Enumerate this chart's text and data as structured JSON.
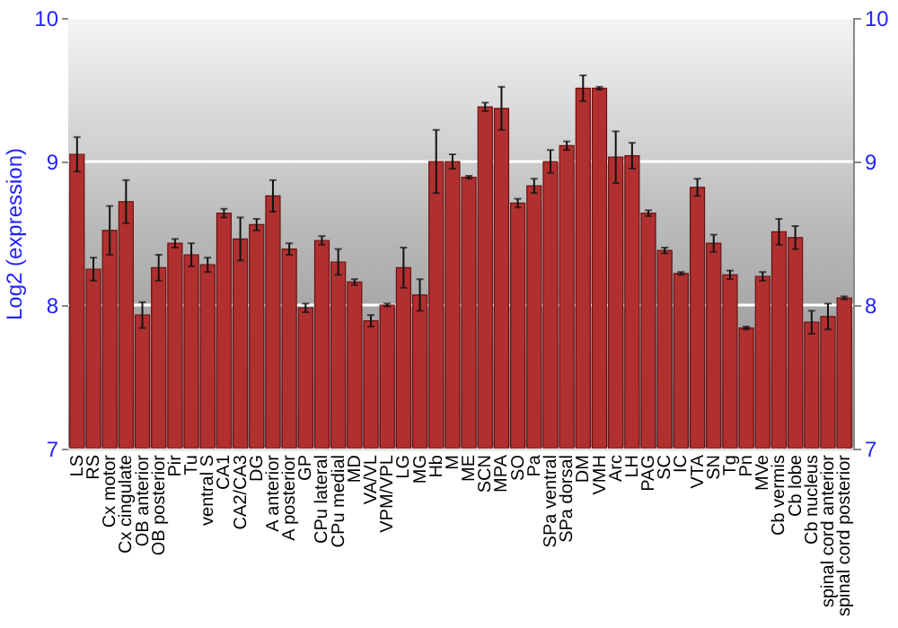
{
  "chart_data": {
    "type": "bar",
    "ylabel": "Log2 (expression)",
    "categories": [
      "LS",
      "RS",
      "Cx motor",
      "Cx cingulate",
      "OB anterior",
      "OB posterior",
      "Pir",
      "Tu",
      "ventral S",
      "CA1",
      "CA2/CA3",
      "DG",
      "A anterior",
      "A posterior",
      "GP",
      "CPu lateral",
      "CPu medial",
      "MD",
      "VA/VL",
      "VPM/VPL",
      "LG",
      "MG",
      "Hb",
      "M",
      "ME",
      "SCN",
      "MPA",
      "SO",
      "Pa",
      "SPa ventral",
      "SPa dorsal",
      "DM",
      "VMH",
      "Arc",
      "LH",
      "PAG",
      "SC",
      "IC",
      "VTA",
      "SN",
      "Tg",
      "Pn",
      "MVe",
      "Cb vermis",
      "Cb lobe",
      "Cb nucleus",
      "spinal cord anterior",
      "spinal cord posterior"
    ],
    "series": [
      {
        "color": "#b03030",
        "values": [
          9.05,
          8.25,
          8.52,
          8.72,
          7.93,
          8.26,
          8.43,
          8.35,
          8.28,
          8.64,
          8.46,
          8.56,
          8.76,
          8.39,
          7.98,
          8.45,
          8.3,
          8.16,
          7.89,
          8.0,
          8.26,
          8.07,
          9.0,
          9.0,
          8.89,
          9.38,
          9.37,
          8.71,
          8.83,
          9.0,
          9.11,
          9.51,
          9.51,
          9.03,
          9.04,
          8.64,
          8.38,
          8.22,
          8.82,
          8.43,
          8.21,
          7.84,
          8.2,
          8.51,
          8.47,
          7.88,
          7.92,
          8.05
        ],
        "errors": [
          0.12,
          0.08,
          0.17,
          0.15,
          0.09,
          0.09,
          0.03,
          0.08,
          0.05,
          0.03,
          0.15,
          0.04,
          0.11,
          0.04,
          0.03,
          0.03,
          0.09,
          0.02,
          0.04,
          0.01,
          0.14,
          0.11,
          0.22,
          0.05,
          0.01,
          0.03,
          0.15,
          0.03,
          0.05,
          0.08,
          0.03,
          0.09,
          0.01,
          0.18,
          0.09,
          0.02,
          0.02,
          0.01,
          0.06,
          0.06,
          0.03,
          0.01,
          0.03,
          0.09,
          0.08,
          0.08,
          0.09,
          0.01
        ]
      }
    ],
    "ylim": [
      7,
      10
    ],
    "yticks": [
      7,
      8,
      9,
      10
    ],
    "y2lim": [
      7,
      10
    ],
    "y2ticks": [
      7,
      8,
      9,
      10
    ],
    "grid": "y"
  }
}
